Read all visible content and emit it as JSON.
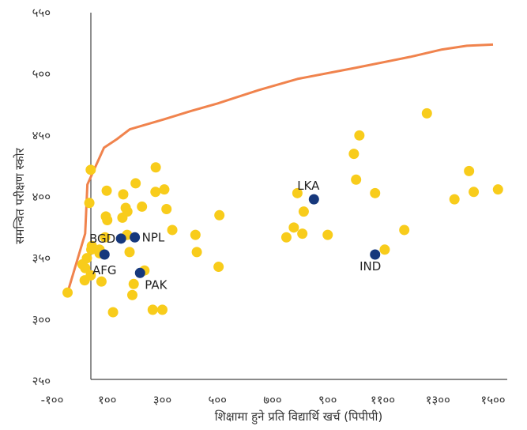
{
  "chart_data": {
    "type": "scatter",
    "title": "",
    "xlabel": "शिक्षामा हुने प्रति विद्यार्थि खर्च (पिपीपी)",
    "ylabel": "समन्वित परीक्षण स्कोर",
    "xlim": [
      -100,
      1500
    ],
    "ylim": [
      250,
      550
    ],
    "x_ticks": [
      -100,
      100,
      300,
      500,
      700,
      900,
      1100,
      1300,
      1500
    ],
    "x_tick_labels": [
      "-१००",
      "१००",
      "३००",
      "५००",
      "७००",
      "९००",
      "११००",
      "१३००",
      "१५००"
    ],
    "y_ticks": [
      250,
      300,
      350,
      400,
      450,
      500,
      550
    ],
    "y_tick_labels": [
      "२५०",
      "३००",
      "३५०",
      "४००",
      "४५०",
      "५००",
      "५५०"
    ],
    "grid": false,
    "colors": {
      "frontier": "#f0834d",
      "other": "#f8cc1b",
      "south_asia": "#16387c",
      "axis": "#444444"
    },
    "frontier": {
      "x": [
        -44,
        20,
        28,
        88,
        135,
        182,
        305,
        405,
        500,
        650,
        790,
        1000,
        1200,
        1315,
        1405,
        1500
      ],
      "y": [
        322,
        370,
        410,
        440,
        447,
        455,
        463,
        470,
        476,
        487,
        496,
        505,
        514,
        520,
        523,
        524
      ]
    },
    "labeled_points": [
      {
        "label": "BGD",
        "x": 150,
        "y": 366
      },
      {
        "label": "NPL",
        "x": 200,
        "y": 367
      },
      {
        "label": "AFG",
        "x": 90,
        "y": 353
      },
      {
        "label": "PAK",
        "x": 219,
        "y": 338
      },
      {
        "label": "LKA",
        "x": 850,
        "y": 398
      },
      {
        "label": "IND",
        "x": 1072,
        "y": 353
      }
    ],
    "other_points": [
      {
        "x": -44,
        "y": 322
      },
      {
        "x": 20,
        "y": 342
      },
      {
        "x": 26,
        "y": 350
      },
      {
        "x": 18,
        "y": 332
      },
      {
        "x": 10,
        "y": 345
      },
      {
        "x": 40,
        "y": 336
      },
      {
        "x": 42,
        "y": 357
      },
      {
        "x": 44,
        "y": 360
      },
      {
        "x": 35,
        "y": 395
      },
      {
        "x": 40,
        "y": 422
      },
      {
        "x": 72,
        "y": 357
      },
      {
        "x": 72,
        "y": 354
      },
      {
        "x": 79,
        "y": 331
      },
      {
        "x": 98,
        "y": 405
      },
      {
        "x": 95,
        "y": 384
      },
      {
        "x": 100,
        "y": 381
      },
      {
        "x": 92,
        "y": 367
      },
      {
        "x": 121,
        "y": 306
      },
      {
        "x": 155,
        "y": 383
      },
      {
        "x": 158,
        "y": 402
      },
      {
        "x": 167,
        "y": 391
      },
      {
        "x": 173,
        "y": 388
      },
      {
        "x": 172,
        "y": 369
      },
      {
        "x": 181,
        "y": 355
      },
      {
        "x": 191,
        "y": 320
      },
      {
        "x": 196,
        "y": 329
      },
      {
        "x": 203,
        "y": 411
      },
      {
        "x": 226,
        "y": 392
      },
      {
        "x": 235,
        "y": 340
      },
      {
        "x": 265,
        "y": 308
      },
      {
        "x": 275,
        "y": 404
      },
      {
        "x": 276,
        "y": 424
      },
      {
        "x": 300,
        "y": 308
      },
      {
        "x": 307,
        "y": 406
      },
      {
        "x": 315,
        "y": 390
      },
      {
        "x": 336,
        "y": 373
      },
      {
        "x": 420,
        "y": 369
      },
      {
        "x": 425,
        "y": 355
      },
      {
        "x": 504,
        "y": 343
      },
      {
        "x": 507,
        "y": 385
      },
      {
        "x": 750,
        "y": 367
      },
      {
        "x": 777,
        "y": 375
      },
      {
        "x": 790,
        "y": 403
      },
      {
        "x": 808,
        "y": 370
      },
      {
        "x": 813,
        "y": 388
      },
      {
        "x": 900,
        "y": 369
      },
      {
        "x": 995,
        "y": 435
      },
      {
        "x": 1003,
        "y": 414
      },
      {
        "x": 1015,
        "y": 450
      },
      {
        "x": 1072,
        "y": 403
      },
      {
        "x": 1107,
        "y": 357
      },
      {
        "x": 1178,
        "y": 373
      },
      {
        "x": 1360,
        "y": 398
      },
      {
        "x": 1413,
        "y": 421
      },
      {
        "x": 1430,
        "y": 404
      },
      {
        "x": 1518,
        "y": 406
      },
      {
        "x": 1260,
        "y": 468
      }
    ]
  }
}
